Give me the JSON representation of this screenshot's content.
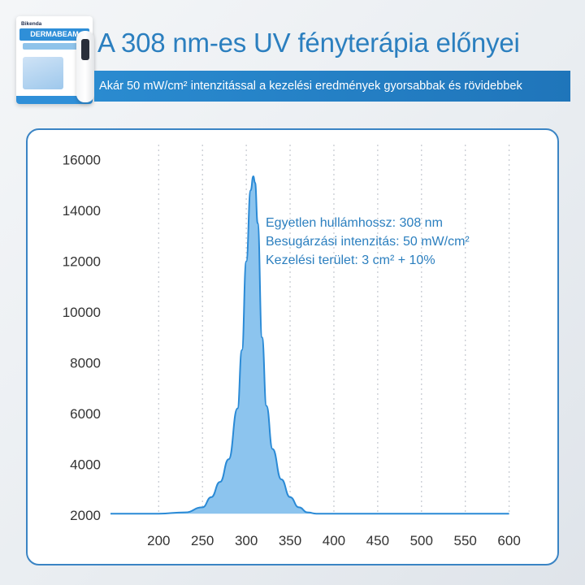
{
  "header": {
    "product_brand": "Bikenda",
    "product_name": "DERMABEAM",
    "title": "A 308 nm-es UV fényterápia előnyei",
    "subtitle": "Akár 50 mW/cm² intenzitással a kezelési eredmények gyorsabbak és rövidebbek"
  },
  "annotations": [
    "Egyetlen hullámhossz: 308 nm",
    "Besugárzási intenzitás: 50 mW/cm²",
    "Kezelési terület: 3 cm² + 10%"
  ],
  "colors": {
    "accent": "#2b7fbf",
    "fill": "#8cc4ee",
    "stroke": "#2a8ad6",
    "grid": "#c8ccd2"
  },
  "chart_data": {
    "type": "area",
    "title": "",
    "xlabel": "",
    "ylabel": "",
    "xlim": [
      145,
      605
    ],
    "ylim": [
      1800,
      16600
    ],
    "x_ticks": [
      200,
      250,
      300,
      350,
      400,
      450,
      500,
      550,
      600
    ],
    "y_ticks": [
      2000,
      4000,
      6000,
      8000,
      10000,
      12000,
      14000,
      16000
    ],
    "grid": "vertical dotted",
    "series": [
      {
        "x": [
          145,
          200,
          230,
          250,
          260,
          270,
          280,
          290,
          295,
          300,
          305,
          308,
          310,
          313,
          318,
          323,
          330,
          340,
          350,
          360,
          370,
          380,
          400,
          600
        ],
        "y": [
          2050,
          2050,
          2100,
          2300,
          2700,
          3300,
          4200,
          6200,
          8500,
          12000,
          14800,
          15350,
          15100,
          13500,
          9000,
          6300,
          4600,
          3400,
          2700,
          2300,
          2100,
          2050,
          2050,
          2050
        ]
      }
    ]
  }
}
